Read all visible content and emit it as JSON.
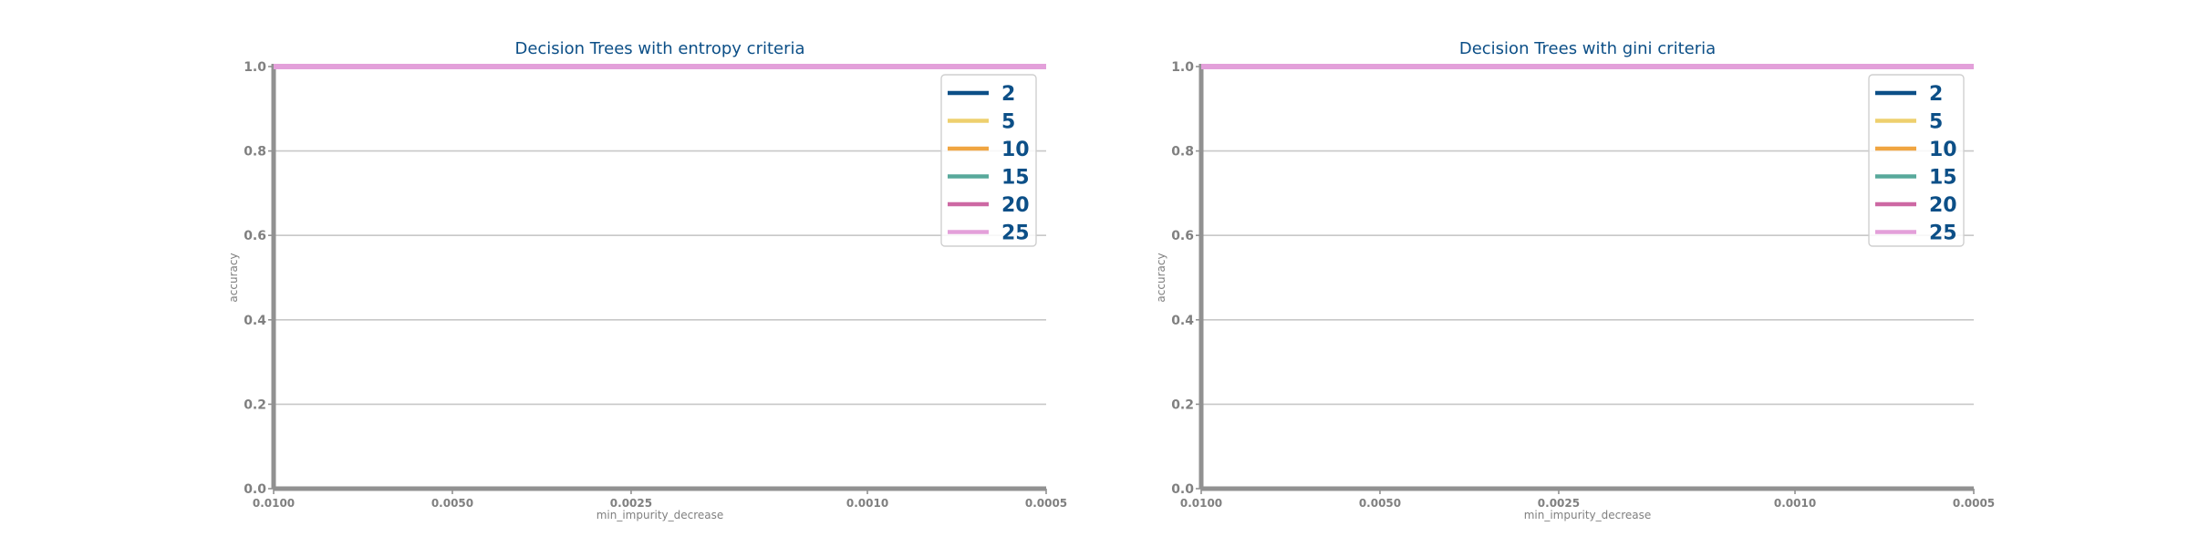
{
  "chart_data": [
    {
      "type": "line",
      "title": "Decision Trees with entropy criteria",
      "xlabel": "min_impurity_decrease",
      "ylabel": "accuracy",
      "x_scale": "log-reversed",
      "x": [
        0.01,
        0.005,
        0.0025,
        0.001,
        0.0005
      ],
      "xticks": [
        "0.0100",
        "0.0050",
        "0.0025",
        "0.0010",
        "0.0005"
      ],
      "xlim": [
        0.01,
        0.0005
      ],
      "yticks": [
        "0.0",
        "0.2",
        "0.4",
        "0.6",
        "0.8",
        "1.0"
      ],
      "ylim": [
        0,
        1
      ],
      "grid": "horizontal",
      "legend_position": "top-right",
      "series": [
        {
          "name": "2",
          "color": "#0c4f87",
          "values": [
            1.0,
            1.0,
            1.0,
            1.0,
            1.0
          ]
        },
        {
          "name": "5",
          "color": "#eed06e",
          "values": [
            1.0,
            1.0,
            1.0,
            1.0,
            1.0
          ]
        },
        {
          "name": "10",
          "color": "#f0a541",
          "values": [
            1.0,
            1.0,
            1.0,
            1.0,
            1.0
          ]
        },
        {
          "name": "15",
          "color": "#58a99b",
          "values": [
            1.0,
            1.0,
            1.0,
            1.0,
            1.0
          ]
        },
        {
          "name": "20",
          "color": "#cd68a3",
          "values": [
            1.0,
            1.0,
            1.0,
            1.0,
            1.0
          ]
        },
        {
          "name": "25",
          "color": "#e3a0da",
          "values": [
            1.0,
            1.0,
            1.0,
            1.0,
            1.0
          ]
        }
      ]
    },
    {
      "type": "line",
      "title": "Decision Trees with gini criteria",
      "xlabel": "min_impurity_decrease",
      "ylabel": "accuracy",
      "x_scale": "log-reversed",
      "x": [
        0.01,
        0.005,
        0.0025,
        0.001,
        0.0005
      ],
      "xticks": [
        "0.0100",
        "0.0050",
        "0.0025",
        "0.0010",
        "0.0005"
      ],
      "xlim": [
        0.01,
        0.0005
      ],
      "yticks": [
        "0.0",
        "0.2",
        "0.4",
        "0.6",
        "0.8",
        "1.0"
      ],
      "ylim": [
        0,
        1
      ],
      "grid": "horizontal",
      "legend_position": "top-right",
      "series": [
        {
          "name": "2",
          "color": "#0c4f87",
          "values": [
            1.0,
            1.0,
            1.0,
            1.0,
            1.0
          ]
        },
        {
          "name": "5",
          "color": "#eed06e",
          "values": [
            1.0,
            1.0,
            1.0,
            1.0,
            1.0
          ]
        },
        {
          "name": "10",
          "color": "#f0a541",
          "values": [
            1.0,
            1.0,
            1.0,
            1.0,
            1.0
          ]
        },
        {
          "name": "15",
          "color": "#58a99b",
          "values": [
            1.0,
            1.0,
            1.0,
            1.0,
            1.0
          ]
        },
        {
          "name": "20",
          "color": "#cd68a3",
          "values": [
            1.0,
            1.0,
            1.0,
            1.0,
            1.0
          ]
        },
        {
          "name": "25",
          "color": "#e3a0da",
          "values": [
            1.0,
            1.0,
            1.0,
            1.0,
            1.0
          ]
        }
      ]
    }
  ],
  "style": {
    "title_color": "#0c4f87",
    "axis_color": "#919191",
    "tick_label_color": "#808080",
    "grid_color": "#c8c8c8",
    "legend_text_color": "#0c4f87"
  }
}
